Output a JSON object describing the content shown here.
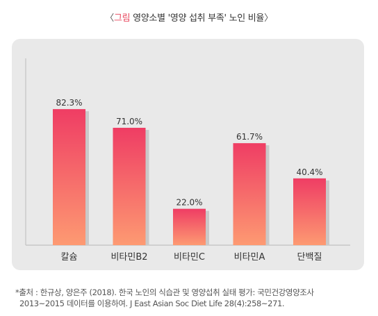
{
  "header": {
    "open_bracket": "〈",
    "label": "그림",
    "title": "영양소별 '영양 섭취 부족' 노인 비율",
    "close_bracket": "〉"
  },
  "source": {
    "line1": "*출처 : 한규상, 양은주 (2018). 한국 노인의 식습관 및 영양섭취 실태 평가: 국민건강영양조사",
    "line2": "2013~2015 데이터를 이용하여. J East Asian Soc Diet Life 28(4):258~271."
  },
  "colors": {
    "bar_top": "#ef3d64",
    "bar_bottom": "#fd9a72",
    "bar_shadow": "#c9c9c9",
    "axis": "#c8c8c8",
    "label_accent": "#e8455c"
  },
  "chart_data": {
    "type": "bar",
    "categories": [
      "칼슘",
      "비타민B2",
      "비타민C",
      "비타민A",
      "단백질"
    ],
    "values": [
      82.3,
      71.0,
      22.0,
      61.7,
      40.4
    ],
    "value_labels": [
      "82.3%",
      "71.0%",
      "22.0%",
      "61.7%",
      "40.4%"
    ],
    "ylim": [
      0,
      100
    ],
    "grid": false,
    "legend": "none"
  }
}
